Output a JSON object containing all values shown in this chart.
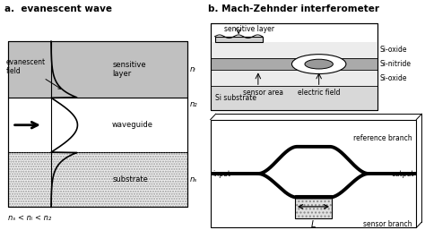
{
  "title_a": "a.  evanescent wave",
  "title_b": "b. Mach-Zehnder interferometer",
  "layer_colors": {
    "sensitive": "#cccccc",
    "waveguide": "#ffffff",
    "substrate_fill": "#e8e8e8"
  },
  "n_labels": [
    "nᵢ",
    "n₂",
    "nₛ"
  ],
  "inequality": "nₛ < nᵢ < n₂",
  "si_labels": [
    "Si-oxide",
    "Si-nitride",
    "Si-oxide"
  ],
  "top_labels": [
    "sensitive layer",
    "sensor area",
    "electric field",
    "Si substrate"
  ],
  "bot_labels": [
    "reference branch",
    "input",
    "output",
    "sensor branch",
    "L"
  ]
}
